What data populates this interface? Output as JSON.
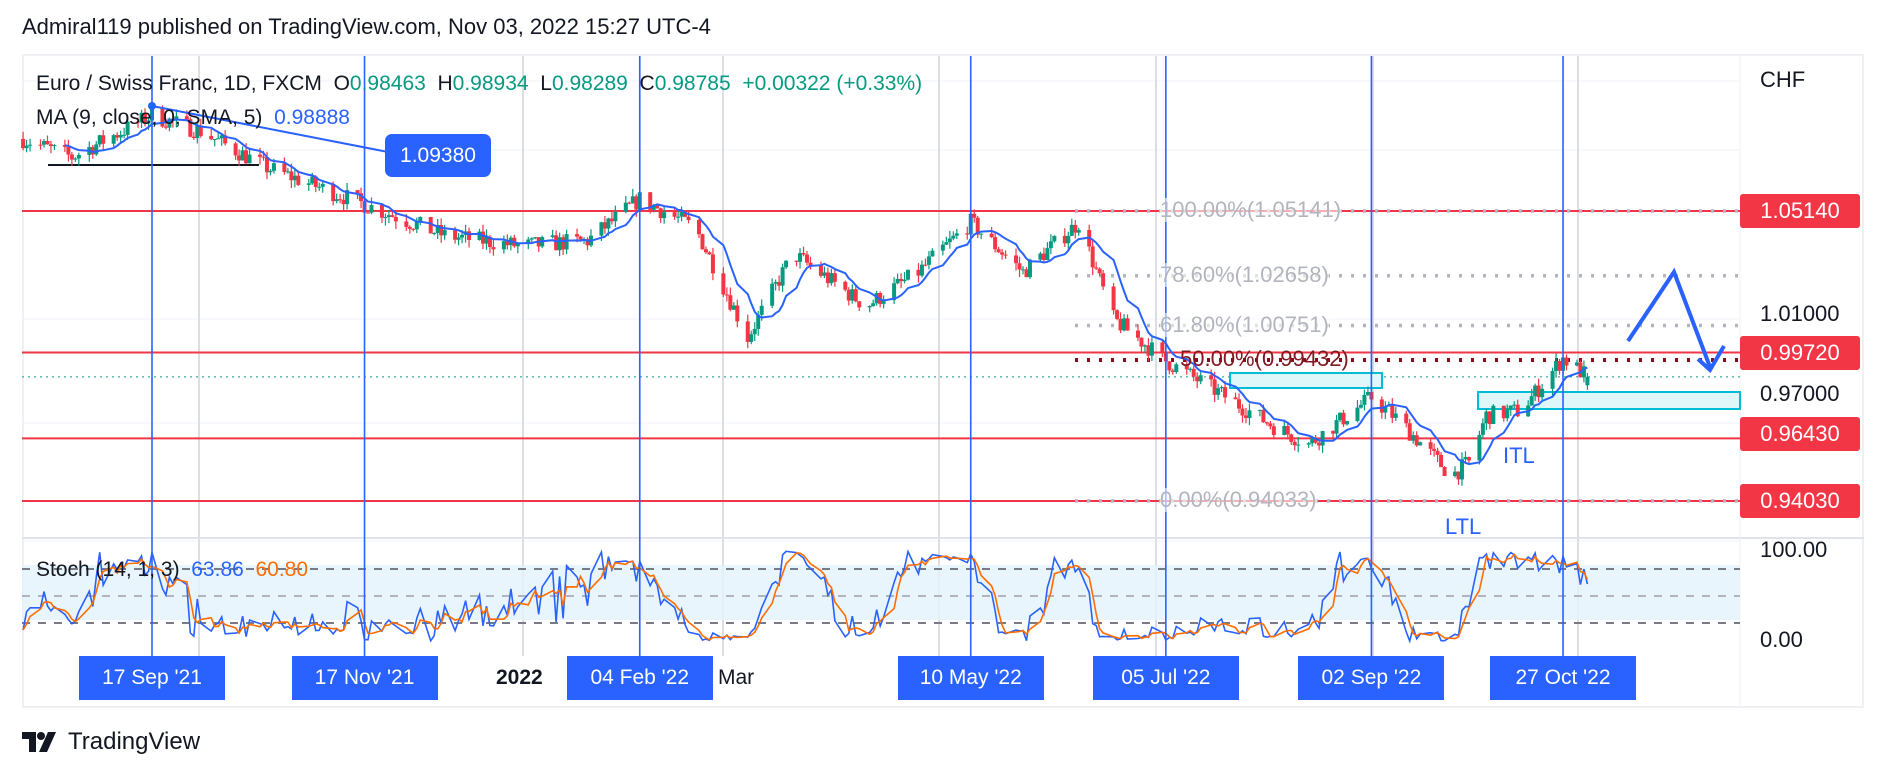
{
  "header": {
    "publish_line": "Admiral119 published on TradingView.com, Nov 03, 2022 15:27 UTC-4"
  },
  "legend": {
    "symbol": "Euro / Swiss Franc, 1D, FXCM",
    "o_label": "O",
    "o": "0.98463",
    "h_label": "H",
    "h": "0.98934",
    "l_label": "L",
    "l": "0.98289",
    "c_label": "C",
    "c": "0.98785",
    "change": "+0.00322 (+0.33%)",
    "ma_label": "MA (9, close, 0, SMA, 5)",
    "ma_value": "0.98888",
    "stoch_label": "Stoch (14, 1, 3)",
    "stoch_k": "63.86",
    "stoch_d": "60.80"
  },
  "price_axis": {
    "currency": "CHF",
    "ticks": [
      "1.01000",
      "0.97000"
    ],
    "stoch_ticks": [
      "100.00",
      "0.00"
    ]
  },
  "price_labels": [
    "1.05140",
    "0.99720",
    "0.96430",
    "0.94030"
  ],
  "callout": "1.09380",
  "fib_labels": [
    "100.00%(1.05141)",
    "78.60%(1.02658)",
    "61.80%(1.00751)",
    "50.00%(0.99432)",
    "0.00%(0.94033)"
  ],
  "annotations": {
    "itl": "ITL",
    "ltl": "LTL"
  },
  "time_axis": {
    "ticks": [
      "2022",
      "Mar"
    ],
    "date_labels": [
      "17 Sep '21",
      "17 Nov '21",
      "04 Feb '22",
      "10 May '22",
      "05 Jul '22",
      "02 Sep '22",
      "27 Oct '22"
    ]
  },
  "footer": {
    "brand": "TradingView"
  },
  "colors": {
    "up": "#089981",
    "down": "#f23645",
    "ma": "#2962ff",
    "stoch_k": "#2962ff",
    "stoch_d": "#ff6d00",
    "level": "#f23645",
    "zone": "#00bcd4"
  },
  "chart_data": {
    "type": "candlestick",
    "title": "Euro / Swiss Franc, 1D, FXCM",
    "y_unit": "CHF",
    "levels": [
      1.0514,
      0.9972,
      0.9643,
      0.9403
    ],
    "fib": {
      "100": 1.05141,
      "78.6": 1.02658,
      "61.8": 1.00751,
      "50": 0.99432,
      "0": 0.94033
    },
    "last": {
      "open": 0.98463,
      "high": 0.98934,
      "low": 0.98289,
      "close": 0.98785
    },
    "price_path": [
      [
        "2021-08-11",
        1.079
      ],
      [
        "2021-08-25",
        1.072
      ],
      [
        "2021-09-17",
        1.088
      ],
      [
        "2021-10-01",
        1.082
      ],
      [
        "2021-10-20",
        1.068
      ],
      [
        "2021-11-17",
        1.054
      ],
      [
        "2021-12-10",
        1.042
      ],
      [
        "2022-01-01",
        1.038
      ],
      [
        "2022-01-20",
        1.04
      ],
      [
        "2022-02-04",
        1.056
      ],
      [
        "2022-02-20",
        1.045
      ],
      [
        "2022-03-07",
        1.003
      ],
      [
        "2022-03-20",
        1.035
      ],
      [
        "2022-04-10",
        1.015
      ],
      [
        "2022-04-25",
        1.028
      ],
      [
        "2022-05-10",
        1.047
      ],
      [
        "2022-05-25",
        1.028
      ],
      [
        "2022-06-10",
        1.047
      ],
      [
        "2022-06-20",
        1.01
      ],
      [
        "2022-07-05",
        0.994
      ],
      [
        "2022-07-20",
        0.982
      ],
      [
        "2022-08-05",
        0.969
      ],
      [
        "2022-08-15",
        0.962
      ],
      [
        "2022-09-02",
        0.98
      ],
      [
        "2022-09-10",
        0.971
      ],
      [
        "2022-09-25",
        0.95
      ],
      [
        "2022-09-30",
        0.955
      ],
      [
        "2022-10-05",
        0.973
      ],
      [
        "2022-10-15",
        0.975
      ],
      [
        "2022-10-27",
        0.995
      ],
      [
        "2022-11-03",
        0.988
      ]
    ],
    "marked_dates": [
      "2021-09-17",
      "2021-11-17",
      "2022-02-04",
      "2022-05-10",
      "2022-07-05",
      "2022-09-02",
      "2022-10-27"
    ],
    "stoch_levels": [
      80,
      50,
      20
    ],
    "stoch_range": [
      0,
      100
    ]
  }
}
